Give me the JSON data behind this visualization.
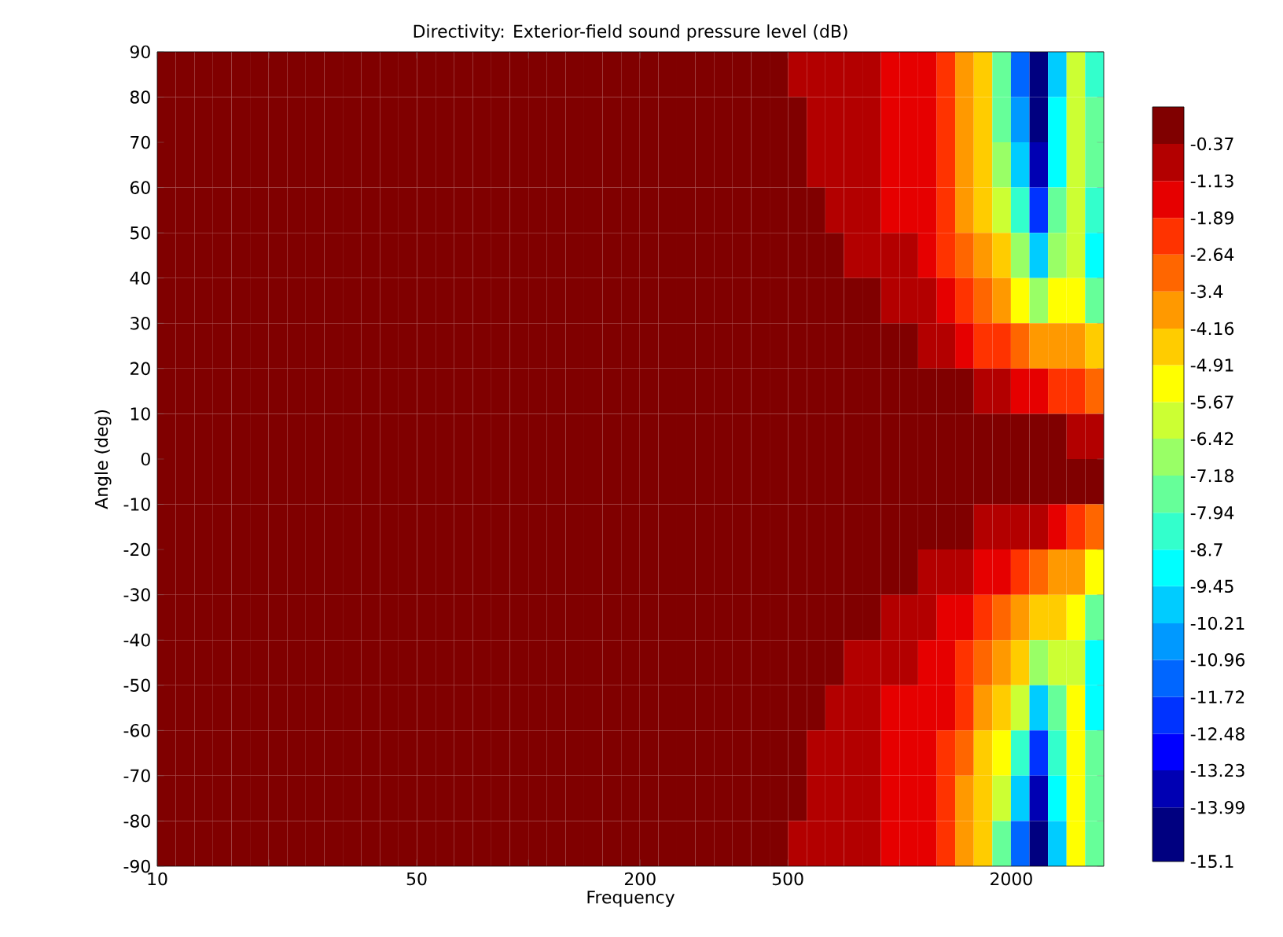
{
  "chart_data": {
    "type": "heatmap",
    "title": "Directivity: Exterior-field sound pressure level (dB)",
    "xlabel": "Frequency",
    "ylabel": "Angle (deg)",
    "log": "x",
    "xlim": [
      10,
      3550
    ],
    "ylim": [
      -90,
      90
    ],
    "xticks": [
      10,
      {
        "value": 20,
        "label": null
      },
      50,
      {
        "value": 100,
        "label": null
      },
      200,
      500,
      {
        "value": 1000,
        "label": null
      },
      2000
    ],
    "yticks": [
      -90,
      -80,
      -70,
      -60,
      -50,
      -40,
      -30,
      -20,
      -10,
      0,
      10,
      20,
      30,
      40,
      50,
      60,
      70,
      80,
      90
    ],
    "x": [
      10.59,
      11.89,
      13.34,
      14.96,
      16.79,
      18.84,
      21.14,
      23.71,
      26.61,
      29.85,
      33.5,
      37.58,
      42.17,
      47.32,
      53.09,
      59.57,
      66.83,
      74.99,
      84.14,
      94.41,
      105.9,
      118.9,
      133.4,
      149.6,
      167.9,
      188.4,
      211.4,
      237.1,
      266.1,
      298.5,
      335,
      375.8,
      421.7,
      473.2,
      530.9,
      595.7,
      668.3,
      749.9,
      841.4,
      944.1,
      1059,
      1189,
      1334,
      1496,
      1679,
      1884,
      2114,
      2371,
      2661,
      2985,
      3350
    ],
    "y": [
      85,
      75,
      65,
      55,
      45,
      35,
      25,
      15,
      5,
      -5,
      -15,
      -25,
      -35,
      -45,
      -55,
      -65,
      -75,
      -85
    ],
    "clim": [
      -15.1,
      0.39
    ],
    "cticks": [
      -15.1,
      -13.99,
      -13.23,
      -12.48,
      -11.72,
      -10.96,
      -10.21,
      -9.45,
      -8.7,
      -7.94,
      -7.18,
      -6.42,
      -5.67,
      -4.91,
      -4.16,
      -3.4,
      -2.64,
      -1.89,
      -1.13,
      -0.37
    ],
    "colors": [
      "#000080",
      "#0000b3",
      "#0000ff",
      "#0033ff",
      "#0066ff",
      "#0099ff",
      "#00ccff",
      "#00ffff",
      "#33ffcc",
      "#66ff99",
      "#99ff66",
      "#ccff33",
      "#ffff00",
      "#ffcc00",
      "#ff9900",
      "#ff6600",
      "#ff3300",
      "#e60000",
      "#b30000",
      "#800000"
    ],
    "cells": [
      [
        -0.2,
        -0.2,
        -0.2,
        -0.2,
        -0.2,
        -0.2,
        -0.2,
        -0.2,
        -0.2,
        -0.2,
        -0.2,
        -0.2,
        -0.2,
        -0.2,
        -0.2,
        -0.2,
        -0.2,
        -0.2,
        -0.2,
        -0.2,
        -0.2,
        -0.2,
        -0.2,
        -0.2,
        -0.2,
        -0.2,
        -0.2,
        -0.2,
        -0.2,
        -0.2,
        -0.2,
        -0.2,
        -0.2,
        -0.2,
        -0.75,
        -0.75,
        -0.75,
        -0.75,
        -0.75,
        -1.5,
        -1.5,
        -1.5,
        -2.3,
        -3.8,
        -4.5,
        -7.6,
        -11.3,
        -14.5,
        -9.8,
        -6.0,
        -8.3
      ],
      [
        -0.2,
        -0.2,
        -0.2,
        -0.2,
        -0.2,
        -0.2,
        -0.2,
        -0.2,
        -0.2,
        -0.2,
        -0.2,
        -0.2,
        -0.2,
        -0.2,
        -0.2,
        -0.2,
        -0.2,
        -0.2,
        -0.2,
        -0.2,
        -0.2,
        -0.2,
        -0.2,
        -0.2,
        -0.2,
        -0.2,
        -0.2,
        -0.2,
        -0.2,
        -0.2,
        -0.2,
        -0.2,
        -0.2,
        -0.2,
        -0.2,
        -0.75,
        -0.75,
        -0.75,
        -0.75,
        -1.5,
        -1.5,
        -1.5,
        -2.3,
        -3.8,
        -4.5,
        -7.6,
        -10.6,
        -14.5,
        -9.1,
        -6.0,
        -7.6
      ],
      [
        -0.2,
        -0.2,
        -0.2,
        -0.2,
        -0.2,
        -0.2,
        -0.2,
        -0.2,
        -0.2,
        -0.2,
        -0.2,
        -0.2,
        -0.2,
        -0.2,
        -0.2,
        -0.2,
        -0.2,
        -0.2,
        -0.2,
        -0.2,
        -0.2,
        -0.2,
        -0.2,
        -0.2,
        -0.2,
        -0.2,
        -0.2,
        -0.2,
        -0.2,
        -0.2,
        -0.2,
        -0.2,
        -0.2,
        -0.2,
        -0.2,
        -0.75,
        -0.75,
        -0.75,
        -0.75,
        -1.5,
        -1.5,
        -1.5,
        -2.3,
        -3.8,
        -4.5,
        -6.8,
        -9.8,
        -13.6,
        -9.1,
        -6.0,
        -7.6
      ],
      [
        -0.2,
        -0.2,
        -0.2,
        -0.2,
        -0.2,
        -0.2,
        -0.2,
        -0.2,
        -0.2,
        -0.2,
        -0.2,
        -0.2,
        -0.2,
        -0.2,
        -0.2,
        -0.2,
        -0.2,
        -0.2,
        -0.2,
        -0.2,
        -0.2,
        -0.2,
        -0.2,
        -0.2,
        -0.2,
        -0.2,
        -0.2,
        -0.2,
        -0.2,
        -0.2,
        -0.2,
        -0.2,
        -0.2,
        -0.2,
        -0.2,
        -0.2,
        -0.75,
        -0.75,
        -0.75,
        -1.5,
        -1.5,
        -1.5,
        -2.3,
        -3.8,
        -4.5,
        -6.0,
        -8.3,
        -12.1,
        -7.6,
        -6.0,
        -8.3
      ],
      [
        -0.2,
        -0.2,
        -0.2,
        -0.2,
        -0.2,
        -0.2,
        -0.2,
        -0.2,
        -0.2,
        -0.2,
        -0.2,
        -0.2,
        -0.2,
        -0.2,
        -0.2,
        -0.2,
        -0.2,
        -0.2,
        -0.2,
        -0.2,
        -0.2,
        -0.2,
        -0.2,
        -0.2,
        -0.2,
        -0.2,
        -0.2,
        -0.2,
        -0.2,
        -0.2,
        -0.2,
        -0.2,
        -0.2,
        -0.2,
        -0.2,
        -0.2,
        -0.2,
        -0.75,
        -0.75,
        -0.75,
        -0.75,
        -1.5,
        -2.3,
        -3.0,
        -3.8,
        -4.5,
        -6.8,
        -9.8,
        -6.8,
        -6.0,
        -9.1
      ],
      [
        -0.2,
        -0.2,
        -0.2,
        -0.2,
        -0.2,
        -0.2,
        -0.2,
        -0.2,
        -0.2,
        -0.2,
        -0.2,
        -0.2,
        -0.2,
        -0.2,
        -0.2,
        -0.2,
        -0.2,
        -0.2,
        -0.2,
        -0.2,
        -0.2,
        -0.2,
        -0.2,
        -0.2,
        -0.2,
        -0.2,
        -0.2,
        -0.2,
        -0.2,
        -0.2,
        -0.2,
        -0.2,
        -0.2,
        -0.2,
        -0.2,
        -0.2,
        -0.2,
        -0.2,
        -0.2,
        -0.75,
        -0.75,
        -0.75,
        -1.5,
        -2.3,
        -3.0,
        -3.8,
        -5.3,
        -6.8,
        -5.3,
        -5.3,
        -7.6
      ],
      [
        -0.2,
        -0.2,
        -0.2,
        -0.2,
        -0.2,
        -0.2,
        -0.2,
        -0.2,
        -0.2,
        -0.2,
        -0.2,
        -0.2,
        -0.2,
        -0.2,
        -0.2,
        -0.2,
        -0.2,
        -0.2,
        -0.2,
        -0.2,
        -0.2,
        -0.2,
        -0.2,
        -0.2,
        -0.2,
        -0.2,
        -0.2,
        -0.2,
        -0.2,
        -0.2,
        -0.2,
        -0.2,
        -0.2,
        -0.2,
        -0.2,
        -0.2,
        -0.2,
        -0.2,
        -0.2,
        -0.2,
        -0.2,
        -0.75,
        -0.75,
        -1.5,
        -2.3,
        -2.3,
        -3.0,
        -3.8,
        -3.8,
        -3.8,
        -4.5
      ],
      [
        -0.2,
        -0.2,
        -0.2,
        -0.2,
        -0.2,
        -0.2,
        -0.2,
        -0.2,
        -0.2,
        -0.2,
        -0.2,
        -0.2,
        -0.2,
        -0.2,
        -0.2,
        -0.2,
        -0.2,
        -0.2,
        -0.2,
        -0.2,
        -0.2,
        -0.2,
        -0.2,
        -0.2,
        -0.2,
        -0.2,
        -0.2,
        -0.2,
        -0.2,
        -0.2,
        -0.2,
        -0.2,
        -0.2,
        -0.2,
        -0.2,
        -0.2,
        -0.2,
        -0.2,
        -0.2,
        -0.2,
        -0.2,
        -0.2,
        -0.2,
        -0.2,
        -0.75,
        -0.75,
        -1.5,
        -1.5,
        -2.3,
        -2.3,
        -3.0
      ],
      [
        -0.2,
        -0.2,
        -0.2,
        -0.2,
        -0.2,
        -0.2,
        -0.2,
        -0.2,
        -0.2,
        -0.2,
        -0.2,
        -0.2,
        -0.2,
        -0.2,
        -0.2,
        -0.2,
        -0.2,
        -0.2,
        -0.2,
        -0.2,
        -0.2,
        -0.2,
        -0.2,
        -0.2,
        -0.2,
        -0.2,
        -0.2,
        -0.2,
        -0.2,
        -0.2,
        -0.2,
        -0.2,
        -0.2,
        -0.2,
        -0.2,
        -0.2,
        -0.2,
        -0.2,
        -0.2,
        -0.2,
        -0.2,
        -0.2,
        -0.2,
        -0.2,
        -0.2,
        -0.2,
        -0.2,
        -0.2,
        -0.2,
        -0.75,
        -0.75
      ],
      [
        -0.2,
        -0.2,
        -0.2,
        -0.2,
        -0.2,
        -0.2,
        -0.2,
        -0.2,
        -0.2,
        -0.2,
        -0.2,
        -0.2,
        -0.2,
        -0.2,
        -0.2,
        -0.2,
        -0.2,
        -0.2,
        -0.2,
        -0.2,
        -0.2,
        -0.2,
        -0.2,
        -0.2,
        -0.2,
        -0.2,
        -0.2,
        -0.2,
        -0.2,
        -0.2,
        -0.2,
        -0.2,
        -0.2,
        -0.2,
        -0.2,
        -0.2,
        -0.2,
        -0.2,
        -0.2,
        -0.2,
        -0.2,
        -0.2,
        -0.2,
        -0.2,
        -0.2,
        -0.2,
        -0.2,
        -0.2,
        -0.2,
        -0.2,
        -0.2
      ],
      [
        -0.2,
        -0.2,
        -0.2,
        -0.2,
        -0.2,
        -0.2,
        -0.2,
        -0.2,
        -0.2,
        -0.2,
        -0.2,
        -0.2,
        -0.2,
        -0.2,
        -0.2,
        -0.2,
        -0.2,
        -0.2,
        -0.2,
        -0.2,
        -0.2,
        -0.2,
        -0.2,
        -0.2,
        -0.2,
        -0.2,
        -0.2,
        -0.2,
        -0.2,
        -0.2,
        -0.2,
        -0.2,
        -0.2,
        -0.2,
        -0.2,
        -0.2,
        -0.2,
        -0.2,
        -0.2,
        -0.2,
        -0.2,
        -0.2,
        -0.2,
        -0.2,
        -0.75,
        -0.75,
        -0.75,
        -0.75,
        -1.5,
        -2.3,
        -3.0
      ],
      [
        -0.2,
        -0.2,
        -0.2,
        -0.2,
        -0.2,
        -0.2,
        -0.2,
        -0.2,
        -0.2,
        -0.2,
        -0.2,
        -0.2,
        -0.2,
        -0.2,
        -0.2,
        -0.2,
        -0.2,
        -0.2,
        -0.2,
        -0.2,
        -0.2,
        -0.2,
        -0.2,
        -0.2,
        -0.2,
        -0.2,
        -0.2,
        -0.2,
        -0.2,
        -0.2,
        -0.2,
        -0.2,
        -0.2,
        -0.2,
        -0.2,
        -0.2,
        -0.2,
        -0.2,
        -0.2,
        -0.2,
        -0.2,
        -0.75,
        -0.75,
        -0.75,
        -1.5,
        -1.5,
        -2.3,
        -3.0,
        -3.8,
        -3.8,
        -5.3
      ],
      [
        -0.2,
        -0.2,
        -0.2,
        -0.2,
        -0.2,
        -0.2,
        -0.2,
        -0.2,
        -0.2,
        -0.2,
        -0.2,
        -0.2,
        -0.2,
        -0.2,
        -0.2,
        -0.2,
        -0.2,
        -0.2,
        -0.2,
        -0.2,
        -0.2,
        -0.2,
        -0.2,
        -0.2,
        -0.2,
        -0.2,
        -0.2,
        -0.2,
        -0.2,
        -0.2,
        -0.2,
        -0.2,
        -0.2,
        -0.2,
        -0.2,
        -0.2,
        -0.2,
        -0.2,
        -0.2,
        -0.75,
        -0.75,
        -0.75,
        -1.5,
        -1.5,
        -2.3,
        -3.0,
        -3.8,
        -4.5,
        -4.5,
        -5.3,
        -7.6
      ],
      [
        -0.2,
        -0.2,
        -0.2,
        -0.2,
        -0.2,
        -0.2,
        -0.2,
        -0.2,
        -0.2,
        -0.2,
        -0.2,
        -0.2,
        -0.2,
        -0.2,
        -0.2,
        -0.2,
        -0.2,
        -0.2,
        -0.2,
        -0.2,
        -0.2,
        -0.2,
        -0.2,
        -0.2,
        -0.2,
        -0.2,
        -0.2,
        -0.2,
        -0.2,
        -0.2,
        -0.2,
        -0.2,
        -0.2,
        -0.2,
        -0.2,
        -0.2,
        -0.2,
        -0.75,
        -0.75,
        -0.75,
        -0.75,
        -1.5,
        -1.5,
        -2.3,
        -3.0,
        -3.8,
        -4.5,
        -6.8,
        -6.0,
        -6.0,
        -9.1
      ],
      [
        -0.2,
        -0.2,
        -0.2,
        -0.2,
        -0.2,
        -0.2,
        -0.2,
        -0.2,
        -0.2,
        -0.2,
        -0.2,
        -0.2,
        -0.2,
        -0.2,
        -0.2,
        -0.2,
        -0.2,
        -0.2,
        -0.2,
        -0.2,
        -0.2,
        -0.2,
        -0.2,
        -0.2,
        -0.2,
        -0.2,
        -0.2,
        -0.2,
        -0.2,
        -0.2,
        -0.2,
        -0.2,
        -0.2,
        -0.2,
        -0.2,
        -0.2,
        -0.75,
        -0.75,
        -0.75,
        -1.5,
        -1.5,
        -1.5,
        -1.5,
        -2.3,
        -3.8,
        -4.5,
        -6.0,
        -9.8,
        -7.6,
        -5.3,
        -9.1
      ],
      [
        -0.2,
        -0.2,
        -0.2,
        -0.2,
        -0.2,
        -0.2,
        -0.2,
        -0.2,
        -0.2,
        -0.2,
        -0.2,
        -0.2,
        -0.2,
        -0.2,
        -0.2,
        -0.2,
        -0.2,
        -0.2,
        -0.2,
        -0.2,
        -0.2,
        -0.2,
        -0.2,
        -0.2,
        -0.2,
        -0.2,
        -0.2,
        -0.2,
        -0.2,
        -0.2,
        -0.2,
        -0.2,
        -0.2,
        -0.2,
        -0.2,
        -0.75,
        -0.75,
        -0.75,
        -0.75,
        -1.5,
        -1.5,
        -1.5,
        -2.3,
        -3.0,
        -4.5,
        -5.3,
        -8.3,
        -12.1,
        -8.3,
        -5.3,
        -7.6
      ],
      [
        -0.2,
        -0.2,
        -0.2,
        -0.2,
        -0.2,
        -0.2,
        -0.2,
        -0.2,
        -0.2,
        -0.2,
        -0.2,
        -0.2,
        -0.2,
        -0.2,
        -0.2,
        -0.2,
        -0.2,
        -0.2,
        -0.2,
        -0.2,
        -0.2,
        -0.2,
        -0.2,
        -0.2,
        -0.2,
        -0.2,
        -0.2,
        -0.2,
        -0.2,
        -0.2,
        -0.2,
        -0.2,
        -0.2,
        -0.2,
        -0.2,
        -0.75,
        -0.75,
        -0.75,
        -0.75,
        -1.5,
        -1.5,
        -1.5,
        -2.3,
        -3.8,
        -4.5,
        -6.0,
        -9.8,
        -13.6,
        -9.1,
        -5.3,
        -7.6
      ],
      [
        -0.2,
        -0.2,
        -0.2,
        -0.2,
        -0.2,
        -0.2,
        -0.2,
        -0.2,
        -0.2,
        -0.2,
        -0.2,
        -0.2,
        -0.2,
        -0.2,
        -0.2,
        -0.2,
        -0.2,
        -0.2,
        -0.2,
        -0.2,
        -0.2,
        -0.2,
        -0.2,
        -0.2,
        -0.2,
        -0.2,
        -0.2,
        -0.2,
        -0.2,
        -0.2,
        -0.2,
        -0.2,
        -0.2,
        -0.2,
        -0.75,
        -0.75,
        -0.75,
        -0.75,
        -0.75,
        -1.5,
        -1.5,
        -1.5,
        -2.3,
        -3.8,
        -4.5,
        -7.6,
        -11.3,
        -14.5,
        -9.8,
        -5.3,
        -7.6
      ]
    ]
  }
}
